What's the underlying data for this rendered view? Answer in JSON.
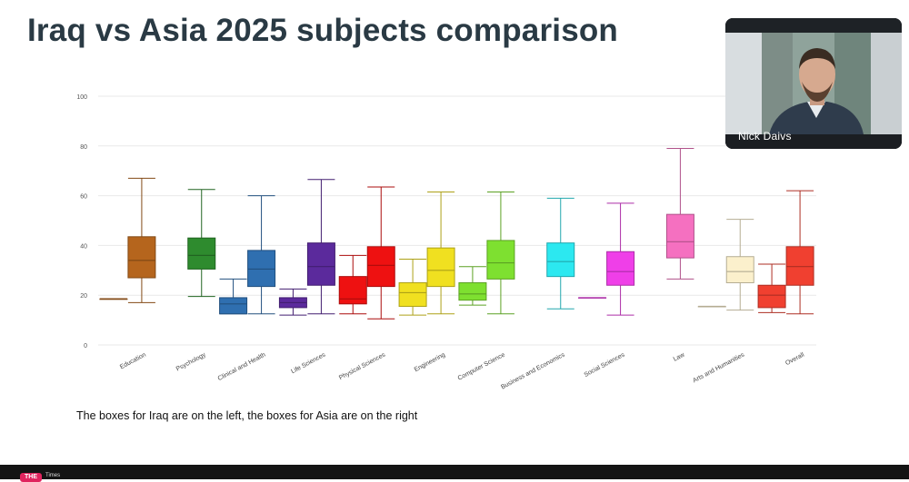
{
  "slide": {
    "title": "Iraq vs Asia 2025 subjects comparison",
    "caption": "The boxes for Iraq are on the left, the boxes for Asia are on the right"
  },
  "webcam": {
    "presenter_name": "Nick Daivs"
  },
  "bottom_bar": {
    "logo_text": "THE",
    "label": "Times"
  },
  "chart_data": {
    "type": "box",
    "ylim": [
      0,
      100
    ],
    "yticks": [
      0,
      20,
      40,
      60,
      80,
      100
    ],
    "grid": true,
    "categories": [
      "Education",
      "Psychology",
      "Clinical and Health",
      "Life Sciences",
      "Physical Sciences",
      "Engineering",
      "Computer Science",
      "Business and Economics",
      "Social Sciences",
      "Law",
      "Arts and Humanities",
      "Overall"
    ],
    "colors": [
      "#b5651d",
      "#2e8b2e",
      "#2f6fb0",
      "#5b2a9c",
      "#ee1111",
      "#f0e020",
      "#7ee030",
      "#2ce8f0",
      "#ef3fe8",
      "#f570c0",
      "#fbf0cc",
      "#f04030"
    ],
    "series": [
      {
        "name": "Iraq",
        "boxes": [
          {
            "category": "Education",
            "min": 18.5,
            "q1": 18.5,
            "median": 18.5,
            "q3": 18.5,
            "max": 18.5
          },
          {
            "category": "Psychology",
            "min": null,
            "q1": null,
            "median": null,
            "q3": null,
            "max": null
          },
          {
            "category": "Clinical and Health",
            "min": 12.5,
            "q1": 12.5,
            "median": 16.5,
            "q3": 19,
            "max": 26.5
          },
          {
            "category": "Life Sciences",
            "min": 12,
            "q1": 15,
            "median": 17,
            "q3": 19,
            "max": 22.5
          },
          {
            "category": "Physical Sciences",
            "min": 12.5,
            "q1": 16.5,
            "median": 18.5,
            "q3": 27.5,
            "max": 36
          },
          {
            "category": "Engineering",
            "min": 12,
            "q1": 15.5,
            "median": 21,
            "q3": 25,
            "max": 34.5
          },
          {
            "category": "Computer Science",
            "min": 16,
            "q1": 18,
            "median": 20.5,
            "q3": 25,
            "max": 31.5
          },
          {
            "category": "Business and Economics",
            "min": null,
            "q1": null,
            "median": null,
            "q3": null,
            "max": null
          },
          {
            "category": "Social Sciences",
            "min": 19,
            "q1": 19,
            "median": 19,
            "q3": 19,
            "max": 19
          },
          {
            "category": "Law",
            "min": null,
            "q1": null,
            "median": null,
            "q3": null,
            "max": null
          },
          {
            "category": "Arts and Humanities",
            "min": 15.5,
            "q1": 15.5,
            "median": 15.5,
            "q3": 15.5,
            "max": 15.5
          },
          {
            "category": "Overall",
            "min": 13,
            "q1": 15,
            "median": 20,
            "q3": 24,
            "max": 32.5
          }
        ]
      },
      {
        "name": "Asia",
        "boxes": [
          {
            "category": "Education",
            "min": 17,
            "q1": 27,
            "median": 34,
            "q3": 43.5,
            "max": 67
          },
          {
            "category": "Psychology",
            "min": 19.5,
            "q1": 30.5,
            "median": 36,
            "q3": 43,
            "max": 62.5
          },
          {
            "category": "Clinical and Health",
            "min": 12.5,
            "q1": 23.5,
            "median": 30.5,
            "q3": 38,
            "max": 60
          },
          {
            "category": "Life Sciences",
            "min": 12.5,
            "q1": 24,
            "median": 31.5,
            "q3": 41,
            "max": 66.5
          },
          {
            "category": "Physical Sciences",
            "min": 10.5,
            "q1": 23.5,
            "median": 32,
            "q3": 39.5,
            "max": 63.5
          },
          {
            "category": "Engineering",
            "min": 12.5,
            "q1": 23.5,
            "median": 30,
            "q3": 39,
            "max": 61.5
          },
          {
            "category": "Computer Science",
            "min": 12.5,
            "q1": 26.5,
            "median": 33,
            "q3": 42,
            "max": 61.5
          },
          {
            "category": "Business and Economics",
            "min": 14.5,
            "q1": 27.5,
            "median": 33.5,
            "q3": 41,
            "max": 59
          },
          {
            "category": "Social Sciences",
            "min": 12,
            "q1": 24,
            "median": 29.5,
            "q3": 37.5,
            "max": 57
          },
          {
            "category": "Law",
            "min": 26.5,
            "q1": 35,
            "median": 41.5,
            "q3": 52.5,
            "max": 79
          },
          {
            "category": "Arts and Humanities",
            "min": 14,
            "q1": 25,
            "median": 29.5,
            "q3": 35.5,
            "max": 50.5
          },
          {
            "category": "Overall",
            "min": 12.5,
            "q1": 24,
            "median": 31.5,
            "q3": 39.5,
            "max": 62
          }
        ]
      }
    ]
  }
}
